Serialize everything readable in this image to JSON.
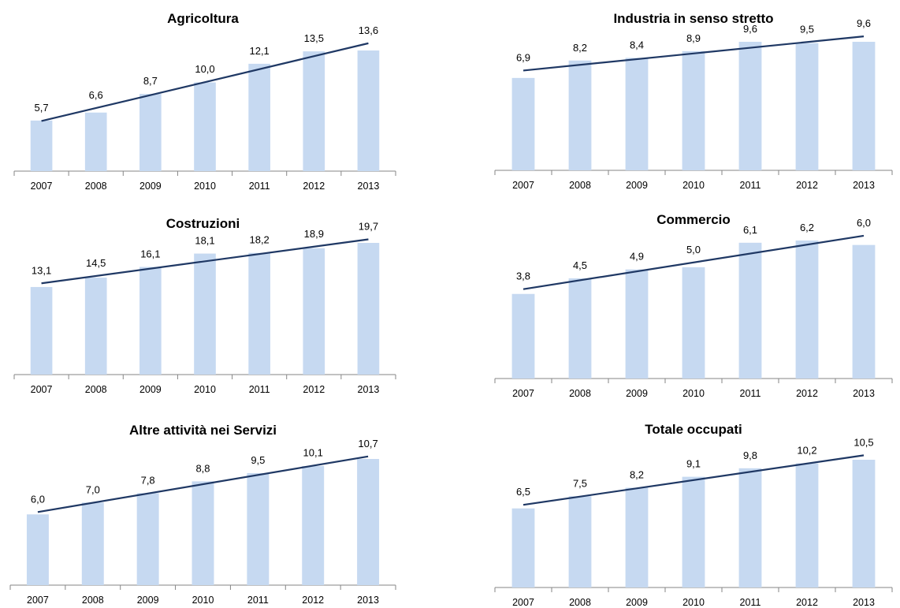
{
  "colors": {
    "bar": "#c6d9f1",
    "trend": "#1f3864",
    "axis": "#868686",
    "text": "#000000"
  },
  "chart_data": [
    {
      "type": "bar",
      "title": "Agricoltura",
      "categories": [
        "2007",
        "2008",
        "2009",
        "2010",
        "2011",
        "2012",
        "2013"
      ],
      "values": [
        5.7,
        6.6,
        8.7,
        10.0,
        12.1,
        13.5,
        13.6
      ],
      "value_labels": [
        "5,7",
        "6,6",
        "8,7",
        "10,0",
        "12,1",
        "13,5",
        "13,6"
      ],
      "trendline": "linear",
      "ylim": [
        0,
        14
      ],
      "grid": false,
      "legend": "none"
    },
    {
      "type": "bar",
      "title": "Industria in senso stretto",
      "categories": [
        "2007",
        "2008",
        "2009",
        "2010",
        "2011",
        "2012",
        "2013"
      ],
      "values": [
        6.9,
        8.2,
        8.4,
        8.9,
        9.6,
        9.5,
        9.6
      ],
      "value_labels": [
        "6,9",
        "8,2",
        "8,4",
        "8,9",
        "9,6",
        "9,5",
        "9,6"
      ],
      "trendline": "linear",
      "ylim": [
        0,
        12
      ],
      "grid": false,
      "legend": "none"
    },
    {
      "type": "bar",
      "title": "Costruzioni",
      "categories": [
        "2007",
        "2008",
        "2009",
        "2010",
        "2011",
        "2012",
        "2013"
      ],
      "values": [
        13.1,
        14.5,
        16.1,
        18.1,
        18.2,
        18.9,
        19.7
      ],
      "value_labels": [
        "13,1",
        "14,5",
        "16,1",
        "18,1",
        "18,2",
        "18,9",
        "19,7"
      ],
      "trendline": "linear",
      "ylim": [
        0,
        25
      ],
      "grid": false,
      "legend": "none"
    },
    {
      "type": "bar",
      "title": "Commercio",
      "categories": [
        "2007",
        "2008",
        "2009",
        "2010",
        "2011",
        "2012",
        "2013"
      ],
      "values": [
        3.8,
        4.5,
        4.9,
        5.0,
        6.1,
        6.2,
        6.0
      ],
      "value_labels": [
        "3,8",
        "4,5",
        "4,9",
        "5,0",
        "6,1",
        "6,2",
        "6,0"
      ],
      "trendline": "linear",
      "ylim": [
        0,
        7
      ],
      "grid": false,
      "legend": "none"
    },
    {
      "type": "bar",
      "title": "Altre attività nei Servizi",
      "categories": [
        "2007",
        "2008",
        "2009",
        "2010",
        "2011",
        "2012",
        "2013"
      ],
      "values": [
        6.0,
        7.0,
        7.8,
        8.8,
        9.5,
        10.1,
        10.7
      ],
      "value_labels": [
        "6,0",
        "7,0",
        "7,8",
        "8,8",
        "9,5",
        "10,1",
        "10,7"
      ],
      "trendline": "linear",
      "ylim": [
        0,
        12
      ],
      "grid": false,
      "legend": "none"
    },
    {
      "type": "bar",
      "title": "Totale occupati",
      "categories": [
        "2007",
        "2008",
        "2009",
        "2010",
        "2011",
        "2012",
        "2013"
      ],
      "values": [
        6.5,
        7.5,
        8.2,
        9.1,
        9.8,
        10.2,
        10.5
      ],
      "value_labels": [
        "6,5",
        "7,5",
        "8,2",
        "9,1",
        "9,8",
        "10,2",
        "10,5"
      ],
      "trendline": "linear",
      "ylim": [
        0,
        12
      ],
      "grid": false,
      "legend": "none"
    }
  ]
}
